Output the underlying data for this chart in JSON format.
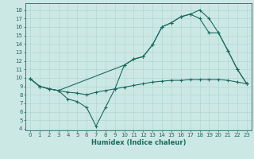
{
  "bg_color": "#cce8e4",
  "line_color": "#1a6b5e",
  "grid_color": "#aad4ce",
  "xlabel": "Humidex (Indice chaleur)",
  "ylim": [
    3.8,
    18.8
  ],
  "xlim": [
    -0.5,
    23.5
  ],
  "yticks": [
    4,
    5,
    6,
    7,
    8,
    9,
    10,
    11,
    12,
    13,
    14,
    15,
    16,
    17,
    18
  ],
  "xticks": [
    0,
    1,
    2,
    3,
    4,
    5,
    6,
    7,
    8,
    9,
    10,
    11,
    12,
    13,
    14,
    15,
    16,
    17,
    18,
    19,
    20,
    21,
    22,
    23
  ],
  "line1_x": [
    0,
    1,
    2,
    3,
    10,
    11,
    12,
    13,
    14,
    15,
    16,
    17,
    18,
    19,
    20,
    21,
    22,
    23
  ],
  "line1_y": [
    9.9,
    9.0,
    8.7,
    8.5,
    11.5,
    12.2,
    12.5,
    13.9,
    16.0,
    16.5,
    17.2,
    17.5,
    18.0,
    17.0,
    15.3,
    13.2,
    11.0,
    9.3
  ],
  "line2_x": [
    0,
    1,
    2,
    3,
    4,
    5,
    6,
    7,
    8,
    9,
    10,
    11,
    12,
    13,
    14,
    15,
    16,
    17,
    18,
    19,
    20,
    21,
    22,
    23
  ],
  "line2_y": [
    9.9,
    9.0,
    8.7,
    8.5,
    8.3,
    8.2,
    8.0,
    8.3,
    8.5,
    8.7,
    8.9,
    9.1,
    9.3,
    9.5,
    9.6,
    9.7,
    9.7,
    9.8,
    9.8,
    9.8,
    9.8,
    9.7,
    9.5,
    9.3
  ],
  "line3_x": [
    0,
    1,
    2,
    3,
    4,
    5,
    6,
    7,
    8,
    9,
    10,
    11,
    12,
    13,
    14,
    15,
    16,
    17,
    18,
    19,
    20,
    21,
    22,
    23
  ],
  "line3_y": [
    9.9,
    9.0,
    8.7,
    8.5,
    7.5,
    7.2,
    6.5,
    4.3,
    6.5,
    8.7,
    11.5,
    12.2,
    12.5,
    13.9,
    16.0,
    16.5,
    17.2,
    17.5,
    17.0,
    15.3,
    15.3,
    13.2,
    11.0,
    9.3
  ],
  "tick_fontsize": 5,
  "xlabel_fontsize": 6,
  "linewidth": 0.8,
  "markersize": 3,
  "markeredgewidth": 0.8
}
